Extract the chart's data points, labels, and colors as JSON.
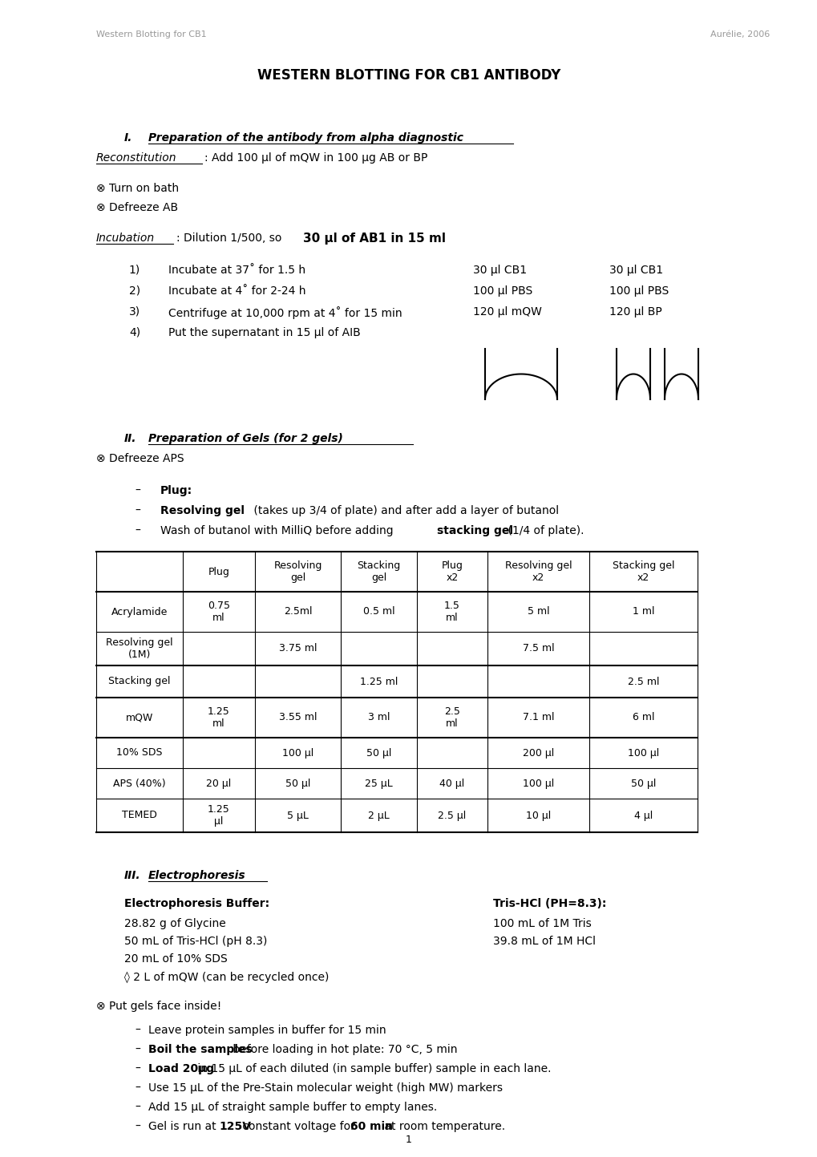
{
  "header_left": "Western Blotting for CB1",
  "header_right": "Aurélie, 2006",
  "main_title": "WESTERN BLOTTING FOR CB1 ANTIBODY",
  "section1_roman": "I.",
  "section1_title": "Preparation of the antibody from alpha diagnostic",
  "reconstitution_label": "Reconstitution",
  "reconstitution_rest": ": Add 100 µl of mQW in 100 µg AB or BP",
  "turn_on_bath": "⊗ Turn on bath",
  "defreeze_ab": "⊗ Defreeze AB",
  "incubation_label": "Incubation",
  "incubation_mid": ": Dilution 1/500, so ",
  "incubation_bold": "30 µl of AB1 in 15 ml",
  "steps": [
    "Incubate at 37˚ for 1.5 h",
    "Incubate at 4˚ for 2-24 h",
    "Centrifuge at 10,000 rpm at 4˚ for 15 min",
    "Put the supernatant in 15 µl of AIB"
  ],
  "col1_lines": [
    "30 µl CB1",
    "100 µl PBS",
    "120 µl mQW"
  ],
  "col2_lines": [
    "30 µl CB1",
    "100 µl PBS",
    "120 µl BP"
  ],
  "section2_roman": "II.",
  "section2_title": "Preparation of Gels (for 2 gels)",
  "defreeze_aps": "⊗ Defreeze APS",
  "bullet1": "Plug:",
  "bullet2_bold": "Resolving gel",
  "bullet2_rest": " (takes up 3/4 of plate) and after add a layer of butanol",
  "bullet3_pre": "Wash of butanol with MilliQ before adding ",
  "bullet3_bold": "stacking gel",
  "bullet3_post": " (1/4 of plate).",
  "table_headers": [
    "",
    "Plug",
    "Resolving\ngel",
    "Stacking\ngel",
    "Plug\nx2",
    "Resolving gel\nx2",
    "Stacking gel\nx2"
  ],
  "table_rows": [
    [
      "Acrylamide",
      "0.75\nml",
      "2.5ml",
      "0.5 ml",
      "1.5\nml",
      "5 ml",
      "1 ml"
    ],
    [
      "Resolving gel\n(1M)",
      "",
      "3.75 ml",
      "",
      "",
      "7.5 ml",
      ""
    ],
    [
      "Stacking gel",
      "",
      "",
      "1.25 ml",
      "",
      "",
      "2.5 ml"
    ],
    [
      "mQW",
      "1.25\nml",
      "3.55 ml",
      "3 ml",
      "2.5\nml",
      "7.1 ml",
      "6 ml"
    ],
    [
      "10% SDS",
      "",
      "100 µl",
      "50 µl",
      "",
      "200 µl",
      "100 µl"
    ],
    [
      "APS (40%)",
      "20 µl",
      "50 µl",
      "25 µL",
      "40 µl",
      "100 µl",
      "50 µl"
    ],
    [
      "TEMED",
      "1.25\nµl",
      "5 µL",
      "2 µL",
      "2.5 µl",
      "10 µl",
      "4 µl"
    ]
  ],
  "section3_roman": "III.",
  "section3_title": "Electrophoresis",
  "epbuffer_title": "Electrophoresis Buffer:",
  "epbuffer_lines": [
    "28.82 g of Glycine",
    "50 mL of Tris-HCl (pH 8.3)",
    "20 mL of 10% SDS",
    "◊ 2 L of mQW (can be recycled once)"
  ],
  "trishcl_title": "Tris-HCl (PH=8.3):",
  "trishcl_lines": [
    "100 mL of 1M Tris",
    "39.8 mL of 1M HCl"
  ],
  "put_gels": "⊗ Put gels face inside!",
  "gel_bullets": [
    [
      [
        "Leave protein samples in buffer for 15 min",
        false
      ]
    ],
    [
      [
        "Boil the samples",
        true
      ],
      [
        " before loading in hot plate: 70 °C, 5 min",
        false
      ]
    ],
    [
      [
        "Load 20µg",
        true
      ],
      [
        " in 15 µL of each diluted (in sample buffer) sample in each lane.",
        false
      ]
    ],
    [
      [
        "Use 15 µL of the Pre-Stain molecular weight (high MW) markers",
        false
      ]
    ],
    [
      [
        "Add 15 µL of straight sample buffer to empty lanes.",
        false
      ]
    ],
    [
      [
        "Gel is run at ",
        false
      ],
      [
        "125V",
        true
      ],
      [
        " constant voltage for ",
        false
      ],
      [
        "60 min",
        true
      ],
      [
        " at room temperature.",
        false
      ]
    ]
  ],
  "page_number": "1",
  "bg_color": "#ffffff",
  "text_color": "#000000",
  "header_color": "#999999",
  "font_size": 10,
  "font_size_small": 9,
  "font_size_header": 8,
  "font_size_title": 12
}
